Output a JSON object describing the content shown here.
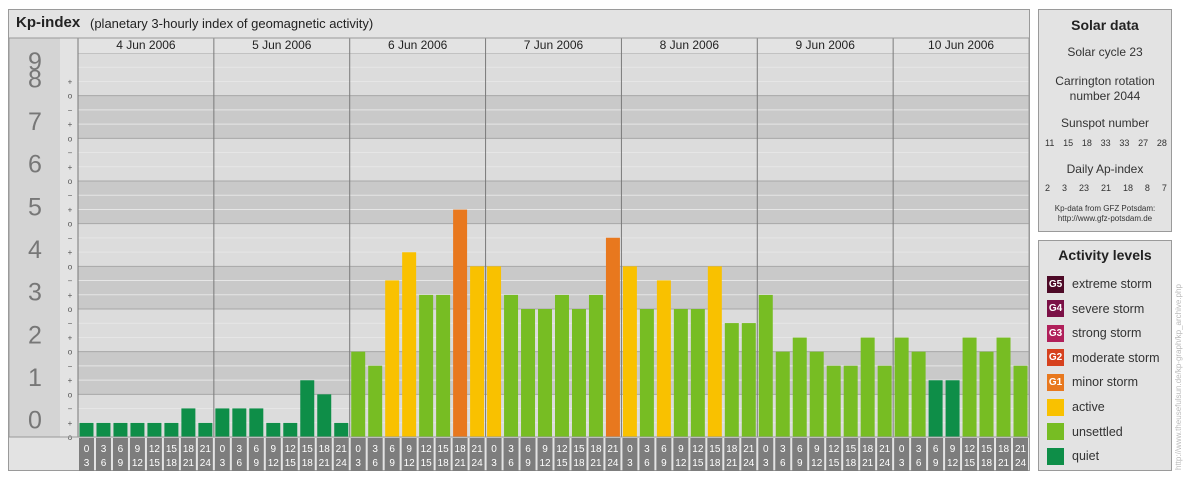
{
  "header": {
    "title": "Kp-index",
    "subtitle": "(planetary 3-hourly index of geomagnetic activity)"
  },
  "chart_data": {
    "type": "bar",
    "title": "Kp-index",
    "subtitle": "(planetary 3-hourly index of geomagnetic activity)",
    "ylim": [
      0,
      9
    ],
    "y_ticks": [
      "0",
      "1",
      "2",
      "3",
      "4",
      "5",
      "6",
      "7",
      "8",
      "9"
    ],
    "sub_ticks": [
      "+",
      "o",
      "−"
    ],
    "days": [
      "4 Jun 2006",
      "5 Jun 2006",
      "6 Jun 2006",
      "7 Jun 2006",
      "8 Jun 2006",
      "9 Jun 2006",
      "10 Jun 2006"
    ],
    "interval_start": [
      "0",
      "3",
      "6",
      "9",
      "12",
      "15",
      "18",
      "21"
    ],
    "interval_end": [
      "3",
      "6",
      "9",
      "12",
      "15",
      "18",
      "21",
      "24"
    ],
    "values": [
      [
        0.33,
        0.33,
        0.33,
        0.33,
        0.33,
        0.33,
        0.67,
        0.33
      ],
      [
        0.67,
        0.67,
        0.67,
        0.33,
        0.33,
        1.33,
        1.0,
        0.33
      ],
      [
        2.0,
        1.67,
        3.67,
        4.33,
        3.33,
        3.33,
        5.33,
        4.0
      ],
      [
        4.0,
        3.33,
        3.0,
        3.0,
        3.33,
        3.0,
        3.33,
        4.67
      ],
      [
        4.0,
        3.0,
        3.67,
        3.0,
        3.0,
        4.0,
        2.67,
        2.67
      ],
      [
        3.33,
        2.0,
        2.33,
        2.0,
        1.67,
        1.67,
        2.33,
        1.67
      ],
      [
        2.33,
        2.0,
        1.33,
        1.33,
        2.33,
        2.0,
        2.33,
        1.67
      ]
    ],
    "colors": [
      [
        "quiet",
        "quiet",
        "quiet",
        "quiet",
        "quiet",
        "quiet",
        "quiet",
        "quiet"
      ],
      [
        "quiet",
        "quiet",
        "quiet",
        "quiet",
        "quiet",
        "quiet",
        "quiet",
        "quiet"
      ],
      [
        "unsettled",
        "unsettled",
        "active",
        "active",
        "unsettled",
        "unsettled",
        "minor",
        "active"
      ],
      [
        "active",
        "unsettled",
        "unsettled",
        "unsettled",
        "unsettled",
        "unsettled",
        "unsettled",
        "minor"
      ],
      [
        "active",
        "unsettled",
        "active",
        "unsettled",
        "unsettled",
        "active",
        "unsettled",
        "unsettled"
      ],
      [
        "unsettled",
        "unsettled",
        "unsettled",
        "unsettled",
        "unsettled",
        "unsettled",
        "unsettled",
        "unsettled"
      ],
      [
        "unsettled",
        "unsettled",
        "quiet",
        "quiet",
        "unsettled",
        "unsettled",
        "unsettled",
        "unsettled"
      ]
    ],
    "palette": {
      "quiet": "#0e8e48",
      "unsettled": "#77bd23",
      "active": "#f9c100",
      "minor": "#e8781e",
      "moderate": "#d6411e",
      "strong": "#b01f5a",
      "severe": "#7b1046",
      "extreme": "#4d0a27"
    },
    "grid": true
  },
  "solar": {
    "title": "Solar data",
    "cycle": "Solar cycle 23",
    "carrington_line1": "Carrington rotation",
    "carrington_line2": "number 2044",
    "sunspot_label": "Sunspot number",
    "sunspot_values": [
      "11",
      "15",
      "18",
      "33",
      "33",
      "27",
      "28"
    ],
    "ap_label": "Daily Ap-index",
    "ap_values": [
      "2",
      "3",
      "23",
      "21",
      "18",
      "8",
      "7"
    ],
    "source_line1": "Kp-data from GFZ Potsdam:",
    "source_line2": "http://www.gfz-potsdam.de"
  },
  "levels": {
    "title": "Activity levels",
    "items": [
      {
        "code": "G5",
        "label": "extreme storm",
        "color": "#4d0a27"
      },
      {
        "code": "G4",
        "label": "severe storm",
        "color": "#7b1046"
      },
      {
        "code": "G3",
        "label": "strong storm",
        "color": "#b01f5a"
      },
      {
        "code": "G2",
        "label": "moderate storm",
        "color": "#d6411e"
      },
      {
        "code": "G1",
        "label": "minor storm",
        "color": "#e8781e"
      },
      {
        "code": "",
        "label": "active",
        "color": "#f9c100"
      },
      {
        "code": "",
        "label": "unsettled",
        "color": "#77bd23"
      },
      {
        "code": "",
        "label": "quiet",
        "color": "#0e8e48"
      }
    ]
  },
  "watermark": "http://www.theusefulsun.de/kp-graph/kp_archive.php"
}
